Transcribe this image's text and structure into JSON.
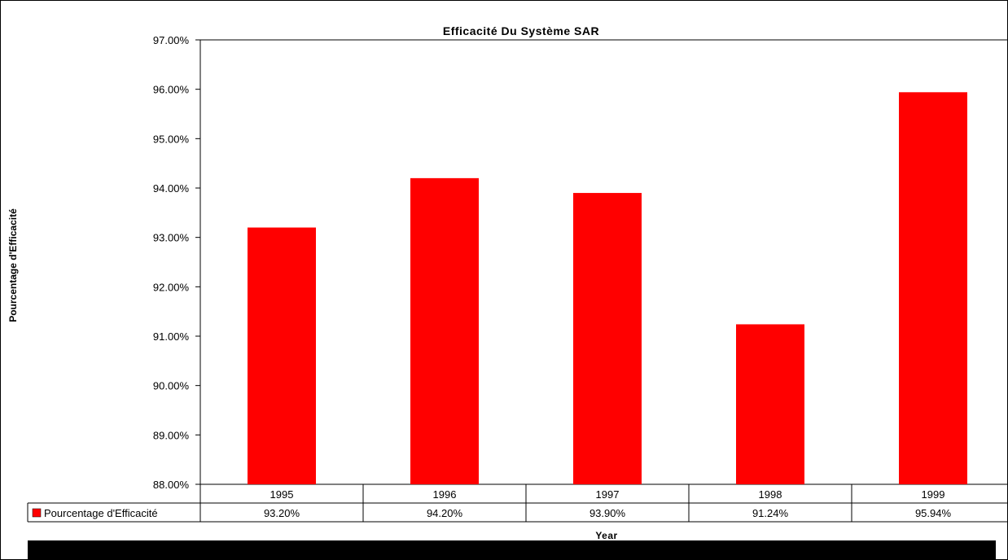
{
  "chart_data": {
    "type": "bar",
    "title": "Efficacité Du Système SAR",
    "xlabel": "Year",
    "ylabel": "Pourcentage d'Efficacité",
    "categories": [
      "1995",
      "1996",
      "1997",
      "1998",
      "1999"
    ],
    "series": [
      {
        "name": "Pourcentage d'Efficacité",
        "values": [
          93.2,
          94.2,
          93.9,
          91.24,
          95.94
        ],
        "value_labels": [
          "93.20%",
          "94.20%",
          "93.90%",
          "91.24%",
          "95.94%"
        ],
        "color": "#ff0000"
      }
    ],
    "ylim": [
      88,
      97
    ],
    "y_ticks": [
      88,
      89,
      90,
      91,
      92,
      93,
      94,
      95,
      96,
      97
    ],
    "y_tick_labels": [
      "88.00%",
      "89.00%",
      "90.00%",
      "91.00%",
      "92.00%",
      "93.00%",
      "94.00%",
      "95.00%",
      "96.00%",
      "97.00%"
    ],
    "grid": false,
    "data_table": true,
    "legend_placement": "data-table"
  }
}
